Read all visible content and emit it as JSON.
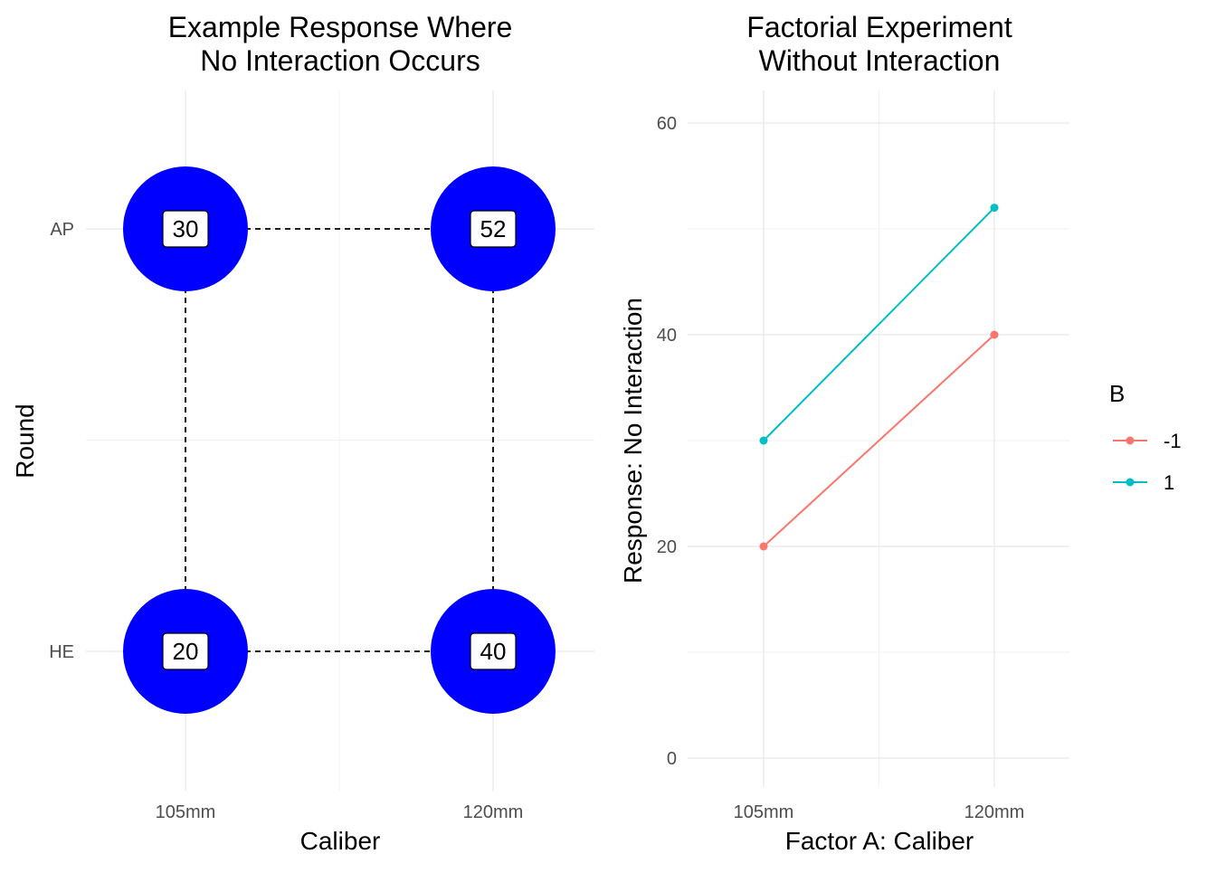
{
  "chart_data": [
    {
      "type": "scatter",
      "title_lines": [
        "Example Response Where",
        "No Interaction Occurs"
      ],
      "xlabel": "Caliber",
      "ylabel": "Round",
      "x_categories": [
        "105mm",
        "120mm"
      ],
      "y_categories": [
        "HE",
        "AP"
      ],
      "grid": true,
      "marker_color": "#0000ff",
      "connector_style": "dashed",
      "points": [
        {
          "x": "105mm",
          "y": "AP",
          "label": "30"
        },
        {
          "x": "120mm",
          "y": "AP",
          "label": "52"
        },
        {
          "x": "105mm",
          "y": "HE",
          "label": "20"
        },
        {
          "x": "120mm",
          "y": "HE",
          "label": "40"
        }
      ]
    },
    {
      "type": "line",
      "title_lines": [
        "Factorial Experiment",
        "Without Interaction"
      ],
      "xlabel": "Factor A: Caliber",
      "ylabel": "Response: No Interaction",
      "categories": [
        "105mm",
        "120mm"
      ],
      "ylim": [
        -3,
        63
      ],
      "yticks": [
        0,
        20,
        40,
        60
      ],
      "grid": true,
      "legend": {
        "title": "B",
        "placement": "right"
      },
      "series": [
        {
          "name": "-1",
          "color": "#f8766d",
          "values": [
            20,
            40
          ]
        },
        {
          "name": "1",
          "color": "#00bfc4",
          "values": [
            30,
            52
          ]
        }
      ]
    }
  ]
}
